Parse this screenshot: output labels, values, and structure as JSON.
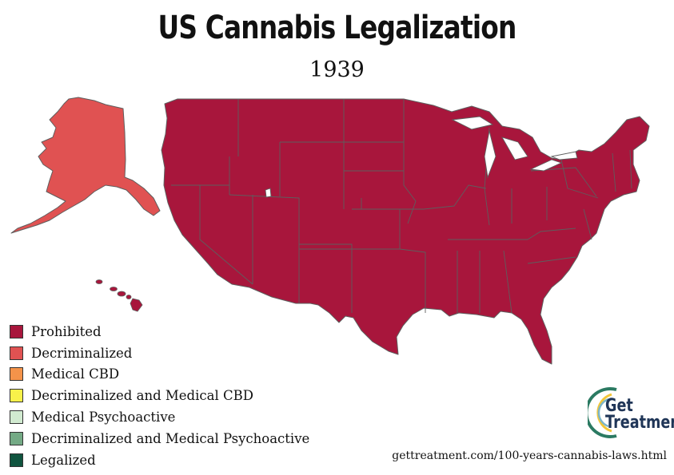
{
  "title": "US Cannabis Legalization",
  "subtitle": "1939",
  "colors": {
    "prohibited": "#a8163c",
    "decriminalized": "#e05252",
    "medical_cbd": "#f4934a",
    "decrim_medical_cbd": "#f8f14a",
    "medical_psychoactive": "#d1ead0",
    "decrim_medical_psychoactive": "#74aa85",
    "legalized": "#10543f",
    "border": "#5e5e5e"
  },
  "legend": [
    {
      "label": "Prohibited",
      "color": "#a8163c"
    },
    {
      "label": "Decriminalized",
      "color": "#e05252"
    },
    {
      "label": "Medical CBD",
      "color": "#f4934a"
    },
    {
      "label": "Decriminalized and Medical CBD",
      "color": "#f8f14a"
    },
    {
      "label": "Medical Psychoactive",
      "color": "#d1ead0"
    },
    {
      "label": "Decriminalized and Medical Psychoactive",
      "color": "#74aa85"
    },
    {
      "label": "Legalized",
      "color": "#10543f"
    }
  ],
  "map_regions": [
    {
      "name": "Contiguous United States",
      "status": "Prohibited"
    },
    {
      "name": "Alaska",
      "status": "Decriminalized"
    },
    {
      "name": "Hawaii",
      "status": "Prohibited"
    }
  ],
  "logo": {
    "line1": "Get",
    "line2": "Treatment"
  },
  "source": "gettreatment.com/100-years-cannabis-laws.html"
}
